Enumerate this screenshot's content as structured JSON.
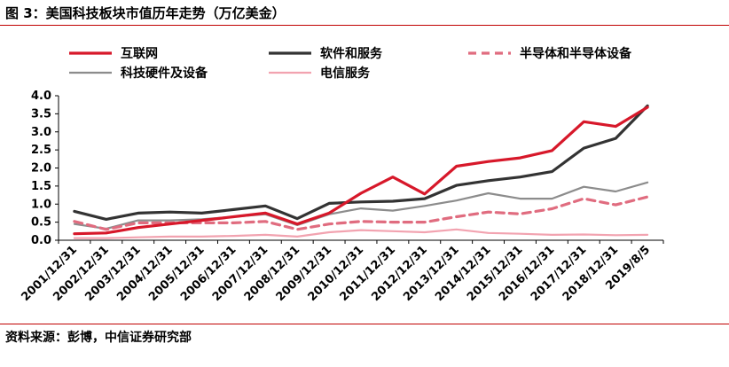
{
  "header": {
    "title": "图 3：美国科技板块市值历年走势（万亿美金）"
  },
  "footer": {
    "source": "资料来源：彭博，中信证券研究部"
  },
  "chart_data": {
    "type": "line",
    "title": "图 3：美国科技板块市值历年走势（万亿美金）",
    "xlabel": "",
    "ylabel": "",
    "ylim": [
      0,
      4.0
    ],
    "yticks": [
      "0.0",
      "0.5",
      "1.0",
      "1.5",
      "2.0",
      "2.5",
      "3.0",
      "3.5",
      "4.0"
    ],
    "grid": false,
    "legend_position": "top",
    "categories": [
      "2001/12/31",
      "2002/12/31",
      "2003/12/31",
      "2004/12/31",
      "2005/12/31",
      "2006/12/31",
      "2007/12/31",
      "2008/12/31",
      "2009/12/31",
      "2010/12/31",
      "2011/12/31",
      "2012/12/31",
      "2013/12/31",
      "2014/12/31",
      "2015/12/31",
      "2016/12/31",
      "2017/12/31",
      "2018/12/31",
      "2019/8/5"
    ],
    "series": [
      {
        "name": "互联网",
        "color": "#d7182a",
        "style": "solid",
        "width": 3.2,
        "values": [
          0.18,
          0.2,
          0.35,
          0.45,
          0.55,
          0.65,
          0.75,
          0.45,
          0.75,
          1.3,
          1.75,
          1.28,
          2.05,
          2.18,
          2.28,
          2.48,
          3.28,
          3.15,
          3.68
        ]
      },
      {
        "name": "软件和服务",
        "color": "#333333",
        "style": "solid",
        "width": 3.2,
        "values": [
          0.8,
          0.58,
          0.75,
          0.78,
          0.75,
          0.85,
          0.95,
          0.6,
          1.02,
          1.06,
          1.08,
          1.15,
          1.52,
          1.65,
          1.75,
          1.9,
          2.55,
          2.82,
          3.72
        ]
      },
      {
        "name": "半导体和半导体设备",
        "color": "#e06c7f",
        "style": "dashed",
        "width": 3.2,
        "values": [
          0.52,
          0.3,
          0.48,
          0.48,
          0.48,
          0.48,
          0.52,
          0.3,
          0.45,
          0.52,
          0.5,
          0.5,
          0.65,
          0.78,
          0.73,
          0.87,
          1.15,
          0.98,
          1.2
        ]
      },
      {
        "name": "科技硬件及设备",
        "color": "#8c8c8c",
        "style": "solid",
        "width": 2.2,
        "values": [
          0.45,
          0.32,
          0.55,
          0.55,
          0.58,
          0.65,
          0.72,
          0.42,
          0.72,
          0.88,
          0.82,
          0.95,
          1.1,
          1.3,
          1.15,
          1.15,
          1.48,
          1.35,
          1.6
        ]
      },
      {
        "name": "电信服务",
        "color": "#f2a3b0",
        "style": "solid",
        "width": 2.2,
        "values": [
          0.06,
          0.06,
          0.08,
          0.1,
          0.1,
          0.12,
          0.15,
          0.1,
          0.22,
          0.28,
          0.25,
          0.22,
          0.3,
          0.2,
          0.18,
          0.15,
          0.16,
          0.14,
          0.15
        ]
      }
    ]
  }
}
